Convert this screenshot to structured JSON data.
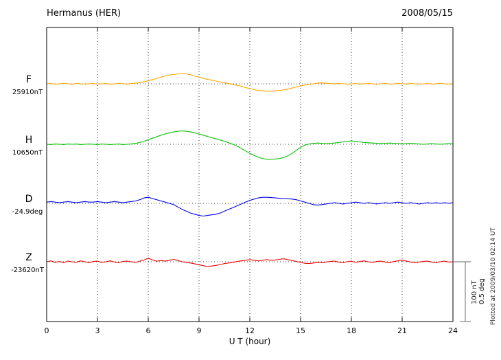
{
  "header": {
    "title": "Hermanus (HER)",
    "date": "2008/05/15"
  },
  "xlabel": "U T (hour)",
  "scale_bar": {
    "label_nt": "100 nT",
    "label_deg": "0.5 deg"
  },
  "footnote": "Plotted at 2009/03/10 02:14 UT",
  "chart_data": {
    "type": "line",
    "title": "Hermanus (HER) magnetogram 2008/05/15",
    "x_unit": "hour UT",
    "x_range": [
      0,
      24
    ],
    "x_ticks": [
      0,
      3,
      6,
      9,
      12,
      15,
      18,
      21,
      24
    ],
    "x_step_hours": 0.25,
    "grid": "dotted-vertical-every-3h",
    "scale": {
      "nT_per_div": 100,
      "deg_per_div": 0.5
    },
    "series": [
      {
        "name": "F",
        "baseline_label": "25910nT",
        "baseline_value": 25910,
        "unit": "nT",
        "color": "#FFA500",
        "values": [
          0,
          0.5,
          -0.5,
          0,
          0.5,
          0,
          -0.5,
          0.5,
          0,
          -0.5,
          0,
          0.5,
          -0.5,
          0,
          0.5,
          -0.5,
          0,
          0.5,
          0,
          -0.5,
          0.5,
          1,
          2,
          3.5,
          5,
          7,
          9,
          11,
          13,
          14.5,
          15.5,
          16.5,
          17,
          16.5,
          15,
          13,
          11,
          9,
          7.5,
          6,
          4.5,
          3,
          1.5,
          0.5,
          -1,
          -2.5,
          -4,
          -6,
          -8,
          -9.5,
          -11,
          -11.5,
          -12,
          -12,
          -11.5,
          -11,
          -10,
          -8.5,
          -7,
          -5,
          -3.5,
          -2,
          -1,
          0,
          1,
          1.5,
          1,
          0.5,
          0,
          0.5,
          0,
          -0.5,
          0,
          0.5,
          -0.5,
          0,
          0.5,
          0,
          -0.5,
          0,
          0.5,
          -0.5,
          0,
          0.5,
          0,
          -0.5,
          0.5,
          0,
          -0.5,
          0,
          0.5,
          -0.5,
          0,
          0.5,
          0,
          -0.5,
          0
        ]
      },
      {
        "name": "H",
        "baseline_label": "10650nT",
        "baseline_value": 10650,
        "unit": "nT",
        "color": "#00C000",
        "values": [
          0,
          -0.5,
          0.5,
          0,
          -0.5,
          0.5,
          0,
          0.5,
          -0.5,
          0,
          0.5,
          0,
          -0.5,
          0.5,
          0,
          -0.5,
          0,
          0.5,
          -0.5,
          0,
          0.5,
          1.5,
          3,
          5,
          7.5,
          10,
          12.5,
          15,
          17,
          19,
          20.5,
          21.5,
          22,
          21.5,
          20.5,
          19,
          17,
          15,
          13,
          11,
          9,
          7,
          5,
          2.5,
          0,
          -3,
          -7,
          -11,
          -15,
          -18.5,
          -21.5,
          -23.5,
          -25,
          -25,
          -24.5,
          -23.5,
          -22,
          -19,
          -15,
          -10,
          -5,
          -1.5,
          0.5,
          1.5,
          2,
          1.5,
          1,
          1.5,
          2,
          3,
          4,
          5,
          5.5,
          5,
          4,
          3,
          2.5,
          2,
          1.5,
          1,
          1.5,
          2,
          1.5,
          1,
          0.5,
          1,
          1.5,
          1,
          0.5,
          0,
          0.5,
          1,
          0.5,
          0,
          0.5,
          1,
          0.5
        ]
      },
      {
        "name": "D",
        "baseline_label": "-24.9deg",
        "baseline_value": -24.9,
        "unit": "deg",
        "color": "#0000EE",
        "values": [
          0.01,
          0.015,
          0.01,
          0.005,
          0.01,
          0.015,
          0.01,
          0.005,
          0.01,
          0.015,
          0.01,
          0.01,
          0.015,
          0.01,
          0.005,
          0.01,
          0.015,
          0.01,
          0.005,
          0.01,
          0.015,
          0.02,
          0.03,
          0.045,
          0.05,
          0.04,
          0.03,
          0.02,
          0.01,
          0,
          -0.01,
          -0.03,
          -0.05,
          -0.065,
          -0.08,
          -0.09,
          -0.1,
          -0.105,
          -0.1,
          -0.095,
          -0.09,
          -0.08,
          -0.065,
          -0.05,
          -0.035,
          -0.02,
          -0.005,
          0.01,
          0.025,
          0.035,
          0.045,
          0.05,
          0.05,
          0.048,
          0.045,
          0.042,
          0.04,
          0.038,
          0.035,
          0.03,
          0.02,
          0.01,
          0,
          -0.01,
          -0.015,
          -0.01,
          -0.005,
          0,
          0.005,
          0,
          -0.005,
          0,
          0.005,
          0.01,
          0.005,
          0,
          0.005,
          0,
          -0.005,
          0,
          0.005,
          0,
          0.005,
          0.01,
          0.005,
          0,
          0.005,
          0,
          -0.005,
          0,
          0.005,
          0,
          0.005,
          0,
          0.005,
          0,
          0.005
        ]
      },
      {
        "name": "Z",
        "baseline_label": "-23620nT",
        "baseline_value": -23620,
        "unit": "nT",
        "color": "#EE0000",
        "values": [
          0,
          1.5,
          -1,
          0.5,
          -1.5,
          1,
          0,
          -1,
          1.5,
          0,
          -1.5,
          0.5,
          1,
          -1,
          0,
          1.5,
          -0.5,
          -1.5,
          0.5,
          1,
          0,
          -1,
          1,
          3,
          6,
          3,
          1,
          2,
          1,
          2.5,
          4,
          2,
          0,
          -1,
          -2,
          -3.5,
          -5,
          -6.5,
          -8,
          -7,
          -6,
          -4.5,
          -3,
          -2,
          -1,
          0.5,
          1.5,
          2.5,
          3.5,
          2.5,
          1.5,
          2.5,
          3.5,
          2.5,
          3,
          4,
          5,
          3.5,
          2,
          0.5,
          -1,
          -2.5,
          -3,
          -2,
          -1,
          -1.5,
          -0.5,
          0.5,
          1,
          -0.5,
          -1.5,
          0,
          1,
          -1,
          0.5,
          1.5,
          0,
          -1,
          0.5,
          1,
          -0.5,
          -1.5,
          0.5,
          1.5,
          2.5,
          1,
          -0.5,
          -1.5,
          -0.5,
          0.5,
          1,
          -0.5,
          -1.5,
          0,
          1,
          -0.5,
          0
        ]
      }
    ]
  }
}
